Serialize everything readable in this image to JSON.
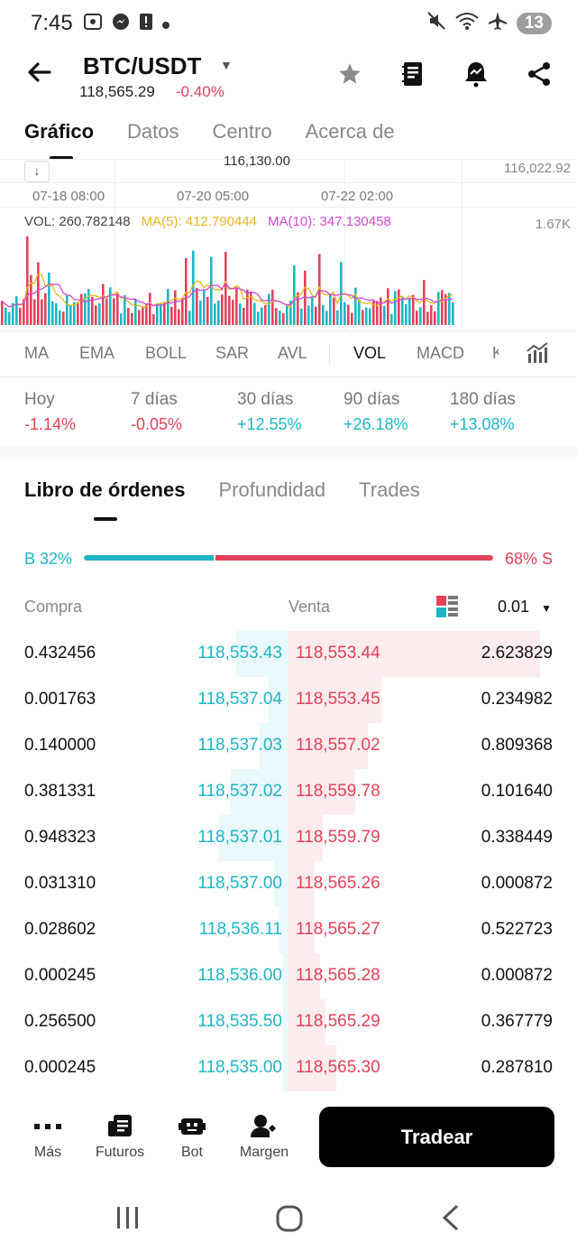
{
  "status_bar": {
    "time": "7:45",
    "battery_badge": "13"
  },
  "header": {
    "pair": "BTC/USDT",
    "price": "118,565.29",
    "change": "-0.40%"
  },
  "tabs": [
    {
      "label": "Gráfico",
      "active": true
    },
    {
      "label": "Datos",
      "active": false
    },
    {
      "label": "Centro",
      "active": false
    },
    {
      "label": "Acerca de",
      "active": false
    }
  ],
  "chart": {
    "top_price_label": "116,022.92",
    "partial_label": "116,130.00",
    "dates": [
      "07-18 08:00",
      "07-20 05:00",
      "07-22 02:00"
    ],
    "vol_label": "VOL: 260.782148",
    "ma5_label": "MA(5): 412.790444",
    "ma10_label": "MA(10): 347.130458",
    "vol_max_label": "1.67K",
    "colors": {
      "up": "#1eb5c5",
      "down": "#e2425a",
      "ma5": "#e5b81c",
      "ma10": "#d04ad0"
    }
  },
  "indicators": [
    "MA",
    "EMA",
    "BOLL",
    "SAR",
    "AVL",
    "VOL",
    "MACD",
    "K"
  ],
  "selected_indicator": "VOL",
  "performance": [
    {
      "label": "Hoy",
      "value": "-1.14%",
      "dir": "neg"
    },
    {
      "label": "7 días",
      "value": "-0.05%",
      "dir": "neg"
    },
    {
      "label": "30 días",
      "value": "+12.55%",
      "dir": "pos"
    },
    {
      "label": "90 días",
      "value": "+26.18%",
      "dir": "pos"
    },
    {
      "label": "180 días",
      "value": "+13.08%",
      "dir": "pos"
    }
  ],
  "orderbook_tabs": [
    {
      "label": "Libro de órdenes",
      "active": true
    },
    {
      "label": "Profundidad",
      "active": false
    },
    {
      "label": "Trades",
      "active": false
    }
  ],
  "ratio": {
    "buy": "B 32%",
    "sell": "68% S",
    "buy_fraction": 0.32
  },
  "orderbook_header": {
    "buy": "Compra",
    "sell": "Venta",
    "precision": "0.01"
  },
  "orderbook": [
    {
      "bid_qty": "0.432456",
      "bid_price": "118,553.43",
      "ask_price": "118,553.44",
      "ask_qty": "2.623829",
      "bid_depth": 0.18,
      "ask_depth": 0.95
    },
    {
      "bid_qty": "0.001763",
      "bid_price": "118,537.04",
      "ask_price": "118,553.45",
      "ask_qty": "0.234982",
      "bid_depth": 0.07,
      "ask_depth": 0.35
    },
    {
      "bid_qty": "0.140000",
      "bid_price": "118,537.03",
      "ask_price": "118,557.02",
      "ask_qty": "0.809368",
      "bid_depth": 0.1,
      "ask_depth": 0.3
    },
    {
      "bid_qty": "0.381331",
      "bid_price": "118,537.02",
      "ask_price": "118,559.78",
      "ask_qty": "0.101640",
      "bid_depth": 0.2,
      "ask_depth": 0.25
    },
    {
      "bid_qty": "0.948323",
      "bid_price": "118,537.01",
      "ask_price": "118,559.79",
      "ask_qty": "0.338449",
      "bid_depth": 0.24,
      "ask_depth": 0.13
    },
    {
      "bid_qty": "0.031310",
      "bid_price": "118,537.00",
      "ask_price": "118,565.26",
      "ask_qty": "0.000872",
      "bid_depth": 0.05,
      "ask_depth": 0.1
    },
    {
      "bid_qty": "0.028602",
      "bid_price": "118,536.11",
      "ask_price": "118,565.27",
      "ask_qty": "0.522723",
      "bid_depth": 0.03,
      "ask_depth": 0.1
    },
    {
      "bid_qty": "0.000245",
      "bid_price": "118,536.00",
      "ask_price": "118,565.28",
      "ask_qty": "0.000872",
      "bid_depth": 0.02,
      "ask_depth": 0.12
    },
    {
      "bid_qty": "0.256500",
      "bid_price": "118,535.50",
      "ask_price": "118,565.29",
      "ask_qty": "0.367779",
      "bid_depth": 0.02,
      "ask_depth": 0.14
    },
    {
      "bid_qty": "0.000245",
      "bid_price": "118,535.00",
      "ask_price": "118,565.30",
      "ask_qty": "0.287810",
      "bid_depth": 0.02,
      "ask_depth": 0.18
    }
  ],
  "bottom_nav": [
    {
      "label": "Más",
      "icon": "more-icon"
    },
    {
      "label": "Futuros",
      "icon": "futures-icon"
    },
    {
      "label": "Bot",
      "icon": "bot-icon"
    },
    {
      "label": "Margen",
      "icon": "margin-icon"
    }
  ],
  "trade_button": "Tradear"
}
